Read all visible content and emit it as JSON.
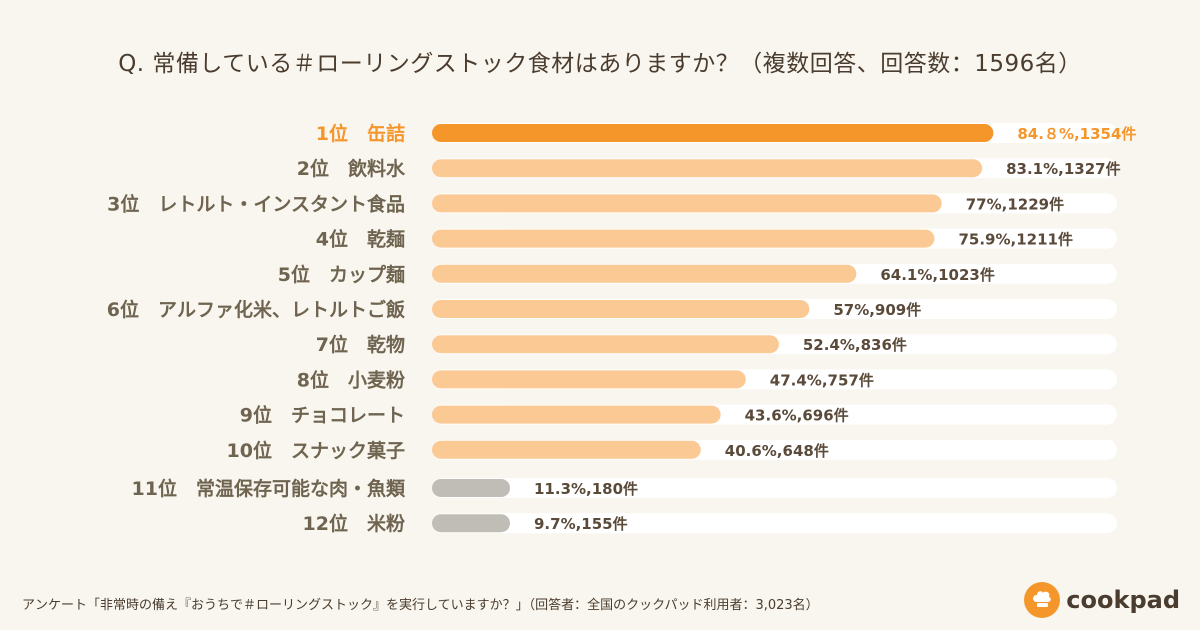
{
  "chart_data": {
    "type": "bar",
    "orientation": "horizontal",
    "title": "Q. 常備している＃ローリングストック食材はありますか？（複数回答、回答数：1596名）",
    "categories": [
      "1位　缶詰",
      "2位　飲料水",
      "3位　レトルト・インスタント食品",
      "4位　乾麺",
      "5位　カップ麺",
      "6位　アルファ化米、レトルトご飯",
      "7位　乾物",
      "8位　小麦粉",
      "9位　チョコレート",
      "10位　スナック菓子",
      "11位　常温保存可能な肉・魚類",
      "12位　米粉"
    ],
    "values": [
      84.8,
      83.1,
      77,
      75.9,
      64.1,
      57,
      52.4,
      47.4,
      43.6,
      40.6,
      11.3,
      9.7
    ],
    "counts": [
      1354,
      1327,
      1229,
      1211,
      1023,
      909,
      836,
      757,
      696,
      648,
      180,
      155
    ],
    "value_labels": [
      "84.８%,1354件",
      "83.1%,1327件",
      "77%,1229件",
      "75.9%,1211件",
      "64.1%,1023件",
      "57%,909件",
      "52.4%,836件",
      "47.4%,757件",
      "43.6%,696件",
      "40.6%,648件",
      "11.3%,180件",
      "9.7%,155件"
    ],
    "xlim": [
      0,
      100
    ],
    "colors": {
      "top": "#f5962b",
      "main": "#fbc994",
      "minor": "#bfbdb5",
      "track": "#ffffff"
    }
  },
  "footer": {
    "note": "アンケート「非常時の備え『おうちで＃ローリングストック』を実行していますか？」（回答者：全国のクックパッド利用者：3,023名）"
  },
  "brand": {
    "name": "cookpad",
    "icon": "chef-hat-icon"
  }
}
